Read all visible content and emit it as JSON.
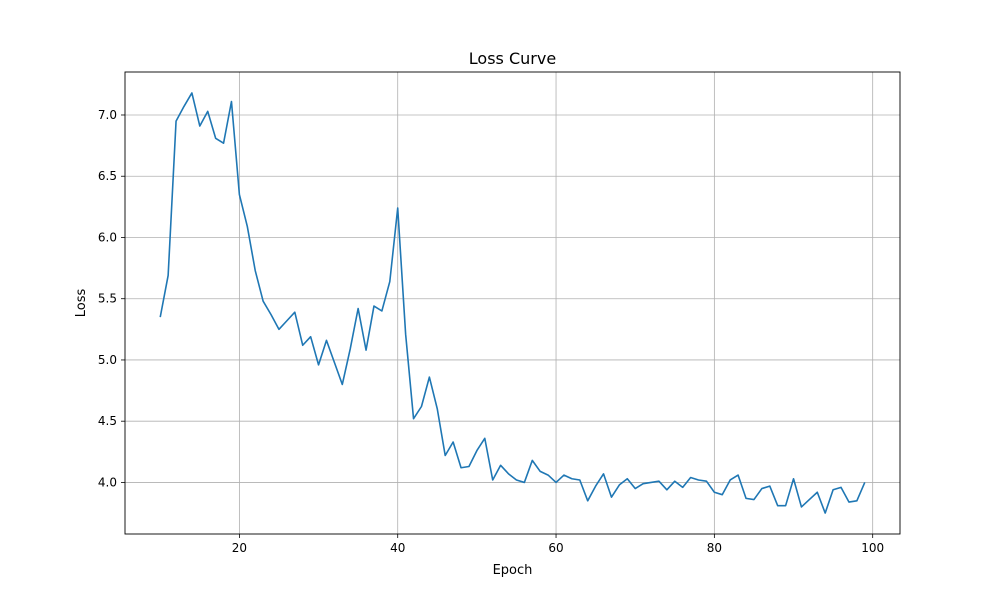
{
  "chart_data": {
    "type": "line",
    "title": "Loss Curve",
    "xlabel": "Epoch",
    "ylabel": "Loss",
    "xlim": [
      5.55,
      103.45
    ],
    "ylim": [
      3.579,
      7.351
    ],
    "xticks": [
      20,
      40,
      60,
      80,
      100
    ],
    "yticks": [
      4.0,
      4.5,
      5.0,
      5.5,
      6.0,
      6.5,
      7.0
    ],
    "xtick_labels": [
      "20",
      "40",
      "60",
      "80",
      "100"
    ],
    "ytick_labels": [
      "4.0",
      "4.5",
      "5.0",
      "5.5",
      "6.0",
      "6.5",
      "7.0"
    ],
    "grid": true,
    "legend": "none",
    "line_color": "#1f77b4",
    "x": [
      10,
      11,
      12,
      13,
      14,
      15,
      16,
      17,
      18,
      19,
      20,
      21,
      22,
      23,
      24,
      25,
      26,
      27,
      28,
      29,
      30,
      31,
      32,
      33,
      34,
      35,
      36,
      37,
      38,
      39,
      40,
      41,
      42,
      43,
      44,
      45,
      46,
      47,
      48,
      49,
      50,
      51,
      52,
      53,
      54,
      55,
      56,
      57,
      58,
      59,
      60,
      61,
      62,
      63,
      64,
      65,
      66,
      67,
      68,
      69,
      70,
      71,
      72,
      73,
      74,
      75,
      76,
      77,
      78,
      79,
      80,
      81,
      82,
      83,
      84,
      85,
      86,
      87,
      88,
      89,
      90,
      91,
      92,
      93,
      94,
      95,
      96,
      97,
      98,
      99
    ],
    "y": [
      5.35,
      5.69,
      6.95,
      7.07,
      7.18,
      6.91,
      7.03,
      6.81,
      6.77,
      7.11,
      6.35,
      6.09,
      5.73,
      5.48,
      5.37,
      5.25,
      5.32,
      5.39,
      5.12,
      5.19,
      4.96,
      5.16,
      4.98,
      4.8,
      5.09,
      5.42,
      5.08,
      5.44,
      5.4,
      5.64,
      6.24,
      5.21,
      4.52,
      4.62,
      4.86,
      4.6,
      4.22,
      4.33,
      4.12,
      4.13,
      4.26,
      4.36,
      4.02,
      4.14,
      4.07,
      4.02,
      4.0,
      4.18,
      4.09,
      4.06,
      4.0,
      4.06,
      4.03,
      4.02,
      3.85,
      3.97,
      4.07,
      3.88,
      3.98,
      4.03,
      3.95,
      3.99,
      4.0,
      4.01,
      3.94,
      4.01,
      3.96,
      4.04,
      4.02,
      4.01,
      3.92,
      3.9,
      4.02,
      4.06,
      3.87,
      3.86,
      3.95,
      3.97,
      3.81,
      3.81,
      4.03,
      3.8,
      3.86,
      3.92,
      3.75,
      3.94,
      3.96,
      3.84,
      3.85,
      4.0
    ]
  }
}
